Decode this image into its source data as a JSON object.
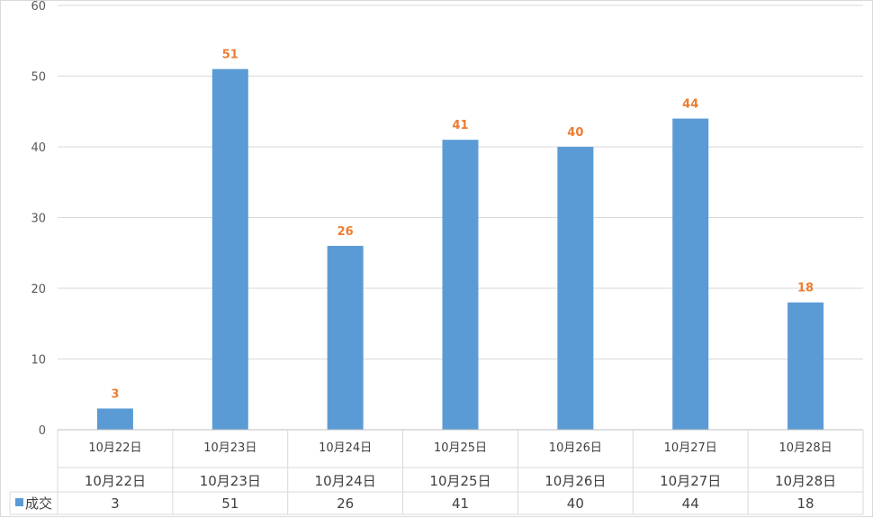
{
  "chart_data": {
    "type": "bar",
    "categories": [
      "10月22日",
      "10月23日",
      "10月24日",
      "10月25日",
      "10月26日",
      "10月27日",
      "10月28日"
    ],
    "series": [
      {
        "name": "成交",
        "values": [
          3,
          51,
          26,
          41,
          40,
          44,
          18
        ],
        "color": "#5b9bd5"
      }
    ],
    "ylim": [
      0,
      60
    ],
    "yticks": [
      0,
      10,
      20,
      30,
      40,
      50,
      60
    ],
    "grid": true,
    "data_label_color": "#ed7d31",
    "data_table": true,
    "legend": "data-table"
  }
}
